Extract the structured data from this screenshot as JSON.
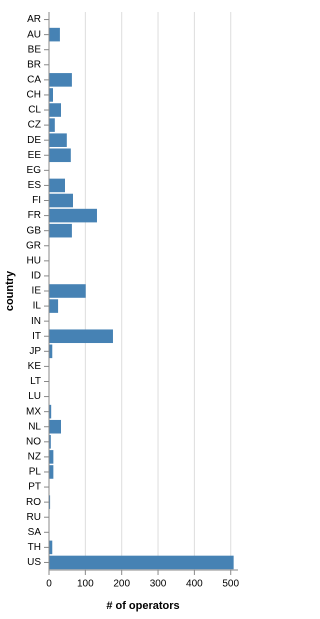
{
  "chart_data": {
    "type": "bar",
    "orientation": "horizontal",
    "x_label": "# of operators",
    "y_label": "country",
    "categories": [
      "AR",
      "AU",
      "BE",
      "BR",
      "CA",
      "CH",
      "CL",
      "CZ",
      "DE",
      "EE",
      "EG",
      "ES",
      "FI",
      "FR",
      "GB",
      "GR",
      "HU",
      "ID",
      "IE",
      "IL",
      "IN",
      "IT",
      "JP",
      "KE",
      "LT",
      "LU",
      "MX",
      "NL",
      "NO",
      "NZ",
      "PL",
      "PT",
      "RO",
      "RU",
      "SA",
      "TH",
      "US"
    ],
    "values": [
      0,
      30,
      0,
      0,
      63,
      11,
      33,
      16,
      49,
      60,
      0,
      44,
      66,
      132,
      63,
      0,
      0,
      0,
      101,
      25,
      0,
      176,
      9,
      0,
      0,
      0,
      6,
      33,
      5,
      12,
      12,
      0,
      3,
      0,
      0,
      9,
      508
    ],
    "color": "#4682b4",
    "xlim": [
      0,
      520
    ],
    "xticks": [
      0,
      100,
      200,
      300,
      400,
      500
    ],
    "grid": true
  }
}
